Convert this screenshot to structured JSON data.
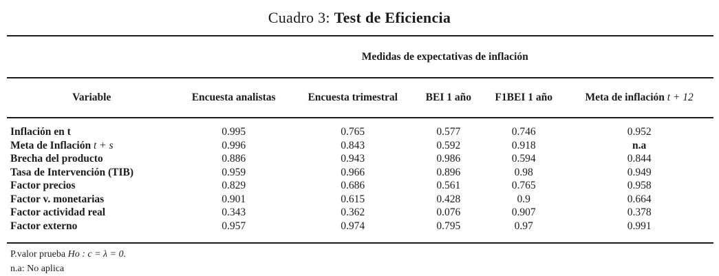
{
  "title": {
    "prefix": "Cuadro 3: ",
    "bold": "Test de Eficiencia"
  },
  "table": {
    "span_header": "Medidas de expectativas de inflación",
    "columns": [
      {
        "label": "Variable"
      },
      {
        "label": "Encuesta analistas"
      },
      {
        "label": "Encuesta trimestral"
      },
      {
        "label": "BEI 1 año"
      },
      {
        "label": "F1BEI 1 año"
      },
      {
        "label": "Meta de inflación ",
        "math": "t + 12"
      }
    ],
    "rows": [
      {
        "label": "Inflación en t",
        "values": [
          "0.995",
          "0.765",
          "0.577",
          "0.746",
          "0.952"
        ]
      },
      {
        "label": "Meta de Inflación ",
        "math": "t + s",
        "values": [
          "0.996",
          "0.843",
          "0.592",
          "0.918",
          "n.a"
        ]
      },
      {
        "label": "Brecha del producto",
        "values": [
          "0.886",
          "0.943",
          "0.986",
          "0.594",
          "0.844"
        ]
      },
      {
        "label": "Tasa de Intervención (TIB)",
        "values": [
          "0.959",
          "0.966",
          "0.896",
          "0.98",
          "0.949"
        ]
      },
      {
        "label": "Factor precios",
        "values": [
          "0.829",
          "0.686",
          "0.561",
          "0.765",
          "0.958"
        ]
      },
      {
        "label": "Factor v. monetarias",
        "values": [
          "0.901",
          "0.615",
          "0.428",
          "0.9",
          "0.664"
        ]
      },
      {
        "label": "Factor actividad real",
        "values": [
          "0.343",
          "0.362",
          "0.076",
          "0.907",
          "0.378"
        ]
      },
      {
        "label": "Factor externo",
        "values": [
          "0.957",
          "0.974",
          "0.795",
          "0.97",
          "0.991"
        ]
      }
    ]
  },
  "footnotes": {
    "line1_prefix": "P.valor prueba ",
    "line1_math": "Ho : c = λ = 0.",
    "line2": "n.a: No aplica"
  },
  "colors": {
    "text": "#1b1b1b",
    "rule": "#1b1b1b",
    "background": "#ffffff"
  }
}
